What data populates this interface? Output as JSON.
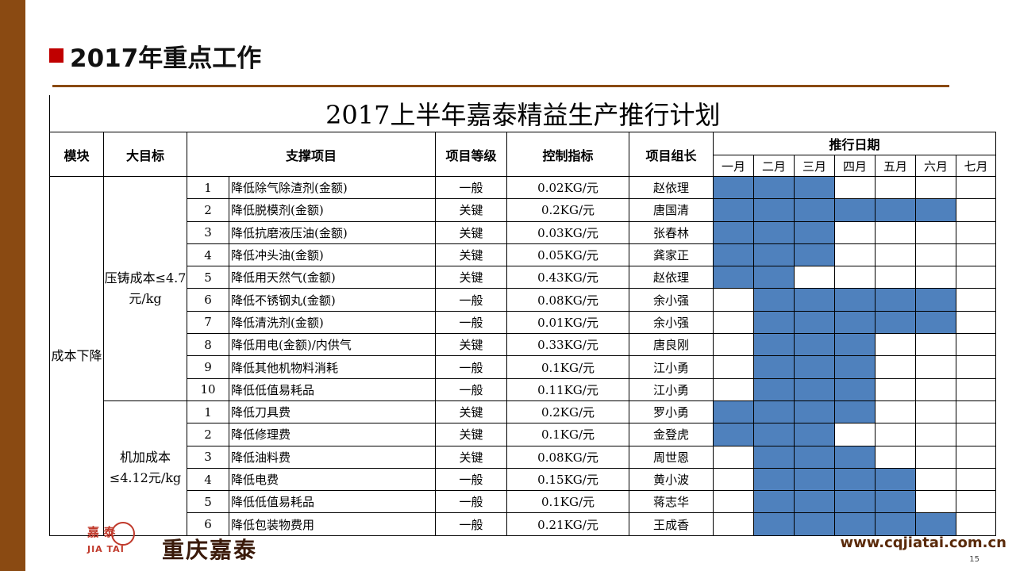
{
  "slide": {
    "title": "2017年重点工作",
    "page_number": "15",
    "website": "www.cqjiatai.com.cn",
    "logo": {
      "cn_small": "嘉  泰",
      "en": "JIA TAI",
      "name": "重庆嘉泰"
    }
  },
  "colors": {
    "sidebar": "#8a4a12",
    "accent_square": "#c00000",
    "schedule_fill": "#4f81bd"
  },
  "plan": {
    "title": "2017上半年嘉泰精益生产推行计划",
    "headers": {
      "module": "模块",
      "goal": "大目标",
      "item": "支撑项目",
      "level": "项目等级",
      "indicator": "控制指标",
      "leader": "项目组长",
      "schedule": "推行日期"
    },
    "months": [
      "一月",
      "二月",
      "三月",
      "四月",
      "五月",
      "六月",
      "七月"
    ],
    "module_name": "成本下降",
    "groups": [
      {
        "goal": "压铸成本≤4.7元/kg",
        "rows": [
          {
            "no": "1",
            "item": "降低除气除渣剂(金额)",
            "level": "一般",
            "indicator": "0.02KG/元",
            "leader": "赵依理",
            "schedule": [
              1,
              1,
              1,
              0,
              0,
              0,
              0
            ]
          },
          {
            "no": "2",
            "item": "降低脱模剂(金额)",
            "level": "关键",
            "indicator": "0.2KG/元",
            "leader": "唐国清",
            "schedule": [
              1,
              1,
              1,
              1,
              1,
              1,
              0
            ]
          },
          {
            "no": "3",
            "item": "降低抗磨液压油(金额)",
            "level": "关键",
            "indicator": "0.03KG/元",
            "leader": "张春林",
            "schedule": [
              1,
              1,
              1,
              0,
              0,
              0,
              0
            ]
          },
          {
            "no": "4",
            "item": "降低冲头油(金额)",
            "level": "关键",
            "indicator": "0.05KG/元",
            "leader": "龚家正",
            "schedule": [
              1,
              1,
              1,
              0,
              0,
              0,
              0
            ]
          },
          {
            "no": "5",
            "item": "降低用天然气(金额)",
            "level": "关键",
            "indicator": "0.43KG/元",
            "leader": "赵依理",
            "schedule": [
              1,
              1,
              0,
              0,
              0,
              0,
              0
            ]
          },
          {
            "no": "6",
            "item": "降低不锈钢丸(金额)",
            "level": "一般",
            "indicator": "0.08KG/元",
            "leader": "余小强",
            "schedule": [
              0,
              1,
              1,
              1,
              1,
              1,
              0
            ]
          },
          {
            "no": "7",
            "item": "降低清洗剂(金额)",
            "level": "一般",
            "indicator": "0.01KG/元",
            "leader": "余小强",
            "schedule": [
              0,
              1,
              1,
              1,
              1,
              1,
              0
            ]
          },
          {
            "no": "8",
            "item": "降低用电(金额)/内供气",
            "level": "关键",
            "indicator": "0.33KG/元",
            "leader": "唐良刚",
            "schedule": [
              0,
              1,
              1,
              1,
              0,
              0,
              0
            ]
          },
          {
            "no": "9",
            "item": "降低其他机物料消耗",
            "level": "一般",
            "indicator": "0.1KG/元",
            "leader": "江小勇",
            "schedule": [
              0,
              1,
              1,
              1,
              0,
              0,
              0
            ]
          },
          {
            "no": "10",
            "item": "降低低值易耗品",
            "level": "一般",
            "indicator": "0.11KG/元",
            "leader": "江小勇",
            "schedule": [
              0,
              1,
              1,
              1,
              0,
              0,
              0
            ]
          }
        ]
      },
      {
        "goal": "机加成本≤4.12元/kg",
        "rows": [
          {
            "no": "1",
            "item": "降低刀具费",
            "level": "关键",
            "indicator": "0.2KG/元",
            "leader": "罗小勇",
            "schedule": [
              1,
              1,
              1,
              1,
              0,
              0,
              0
            ]
          },
          {
            "no": "2",
            "item": "降低修理费",
            "level": "关键",
            "indicator": "0.1KG/元",
            "leader": "金登虎",
            "schedule": [
              1,
              1,
              1,
              0,
              0,
              0,
              0
            ]
          },
          {
            "no": "3",
            "item": "降低油料费",
            "level": "关键",
            "indicator": "0.08KG/元",
            "leader": "周世恩",
            "schedule": [
              0,
              1,
              1,
              1,
              0,
              0,
              0
            ]
          },
          {
            "no": "4",
            "item": "降低电费",
            "level": "一般",
            "indicator": "0.15KG/元",
            "leader": "黄小波",
            "schedule": [
              0,
              1,
              1,
              1,
              1,
              0,
              0
            ]
          },
          {
            "no": "5",
            "item": "降低低值易耗品",
            "level": "一般",
            "indicator": "0.1KG/元",
            "leader": "蒋志华",
            "schedule": [
              0,
              1,
              1,
              1,
              1,
              0,
              0
            ]
          },
          {
            "no": "6",
            "item": "降低包装物费用",
            "level": "一般",
            "indicator": "0.21KG/元",
            "leader": "王成香",
            "schedule": [
              0,
              1,
              1,
              1,
              1,
              1,
              0
            ]
          }
        ]
      }
    ]
  }
}
